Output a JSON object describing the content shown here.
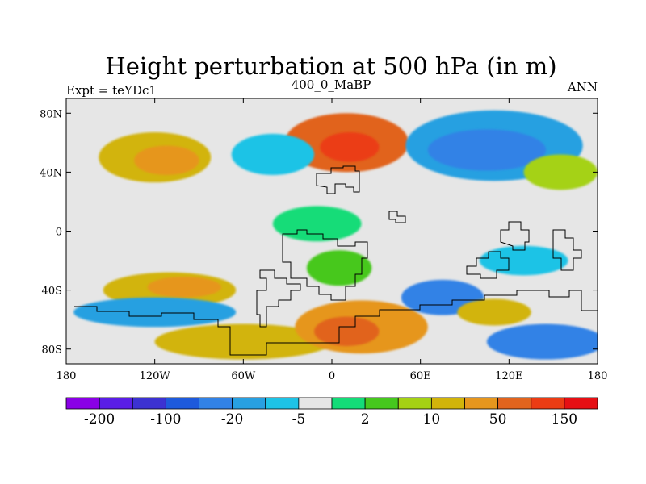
{
  "chart_data": {
    "type": "heatmap",
    "title": "Height perturbation at 500 hPa (in m)",
    "subtitle_left": "Expt = teYDc1",
    "subtitle_center": "400_0_MaBP",
    "subtitle_right": "ANN",
    "x_range": [
      -180,
      180
    ],
    "y_range": [
      -90,
      90
    ],
    "x_ticks": [
      {
        "value": -180,
        "label": "180"
      },
      {
        "value": -120,
        "label": "120W"
      },
      {
        "value": -60,
        "label": "60W"
      },
      {
        "value": 0,
        "label": "0"
      },
      {
        "value": 60,
        "label": "60E"
      },
      {
        "value": 120,
        "label": "120E"
      },
      {
        "value": 180,
        "label": "180"
      }
    ],
    "y_ticks": [
      {
        "value": 80,
        "label": "80N"
      },
      {
        "value": 40,
        "label": "40N"
      },
      {
        "value": 0,
        "label": "0"
      },
      {
        "value": -40,
        "label": "40S"
      },
      {
        "value": -80,
        "label": "80S"
      }
    ],
    "colorbar": {
      "colors": [
        "#8a00e6",
        "#5a1ee6",
        "#3c32d2",
        "#1e5adc",
        "#3282e6",
        "#28a0e1",
        "#1ec3e6",
        "#e6e6e6",
        "#14dc78",
        "#46c81e",
        "#a5d214",
        "#d2b40a",
        "#e6961e",
        "#e1641e",
        "#eb3c14",
        "#e60f14"
      ],
      "labels": [
        {
          "boundary": 1,
          "text": "-200"
        },
        {
          "boundary": 3,
          "text": "-100"
        },
        {
          "boundary": 5,
          "text": "-20"
        },
        {
          "boundary": 7,
          "text": "-5"
        },
        {
          "boundary": 9,
          "text": "2"
        },
        {
          "boundary": 11,
          "text": "10"
        },
        {
          "boundary": 13,
          "text": "50"
        },
        {
          "boundary": 15,
          "text": "150"
        }
      ]
    },
    "field_regions": [
      {
        "name": "nh-warm-blob",
        "lon": 10,
        "lat": 60,
        "rx": 42,
        "ry": 20,
        "level": 13
      },
      {
        "name": "nh-warm-core",
        "lon": 12,
        "lat": 57,
        "rx": 20,
        "ry": 10,
        "level": 14
      },
      {
        "name": "nh-pacific-warm",
        "lon": -120,
        "lat": 50,
        "rx": 38,
        "ry": 17,
        "level": 11
      },
      {
        "name": "nh-pacific-core",
        "lon": -112,
        "lat": 48,
        "rx": 22,
        "ry": 10,
        "level": 12
      },
      {
        "name": "nh-asia-cold",
        "lon": 110,
        "lat": 58,
        "rx": 60,
        "ry": 24,
        "level": 5
      },
      {
        "name": "nh-asia-cold-core",
        "lon": 105,
        "lat": 55,
        "rx": 40,
        "ry": 14,
        "level": 4
      },
      {
        "name": "nh-atlantic-cold",
        "lon": -40,
        "lat": 52,
        "rx": 28,
        "ry": 14,
        "level": 6
      },
      {
        "name": "nh-pacific-east-warm",
        "lon": 155,
        "lat": 40,
        "rx": 25,
        "ry": 12,
        "level": 10
      },
      {
        "name": "tropic-green",
        "lon": -10,
        "lat": 5,
        "rx": 30,
        "ry": 12,
        "level": 8
      },
      {
        "name": "sh-africa-green",
        "lon": 5,
        "lat": -25,
        "rx": 22,
        "ry": 12,
        "level": 9
      },
      {
        "name": "sh-pacific-warm",
        "lon": -110,
        "lat": -40,
        "rx": 45,
        "ry": 12,
        "level": 11
      },
      {
        "name": "sh-pacific-core",
        "lon": -100,
        "lat": -38,
        "rx": 25,
        "ry": 7,
        "level": 12
      },
      {
        "name": "sh-south-cold",
        "lon": -120,
        "lat": -55,
        "rx": 55,
        "ry": 10,
        "level": 5
      },
      {
        "name": "sh-polar-warm",
        "lon": -60,
        "lat": -75,
        "rx": 60,
        "ry": 12,
        "level": 11
      },
      {
        "name": "sh-polar-warm-center",
        "lon": 20,
        "lat": -65,
        "rx": 45,
        "ry": 18,
        "level": 12
      },
      {
        "name": "sh-polar-warm-core",
        "lon": 10,
        "lat": -68,
        "rx": 22,
        "ry": 10,
        "level": 13
      },
      {
        "name": "sh-indian-cold",
        "lon": 75,
        "lat": -45,
        "rx": 28,
        "ry": 12,
        "level": 4
      },
      {
        "name": "sh-indian-warm",
        "lon": 110,
        "lat": -55,
        "rx": 25,
        "ry": 9,
        "level": 11
      },
      {
        "name": "sh-east-cold",
        "lon": 145,
        "lat": -75,
        "rx": 40,
        "ry": 12,
        "level": 4
      },
      {
        "name": "sh-aus-blue",
        "lon": 130,
        "lat": -20,
        "rx": 30,
        "ry": 10,
        "level": 6
      }
    ]
  }
}
